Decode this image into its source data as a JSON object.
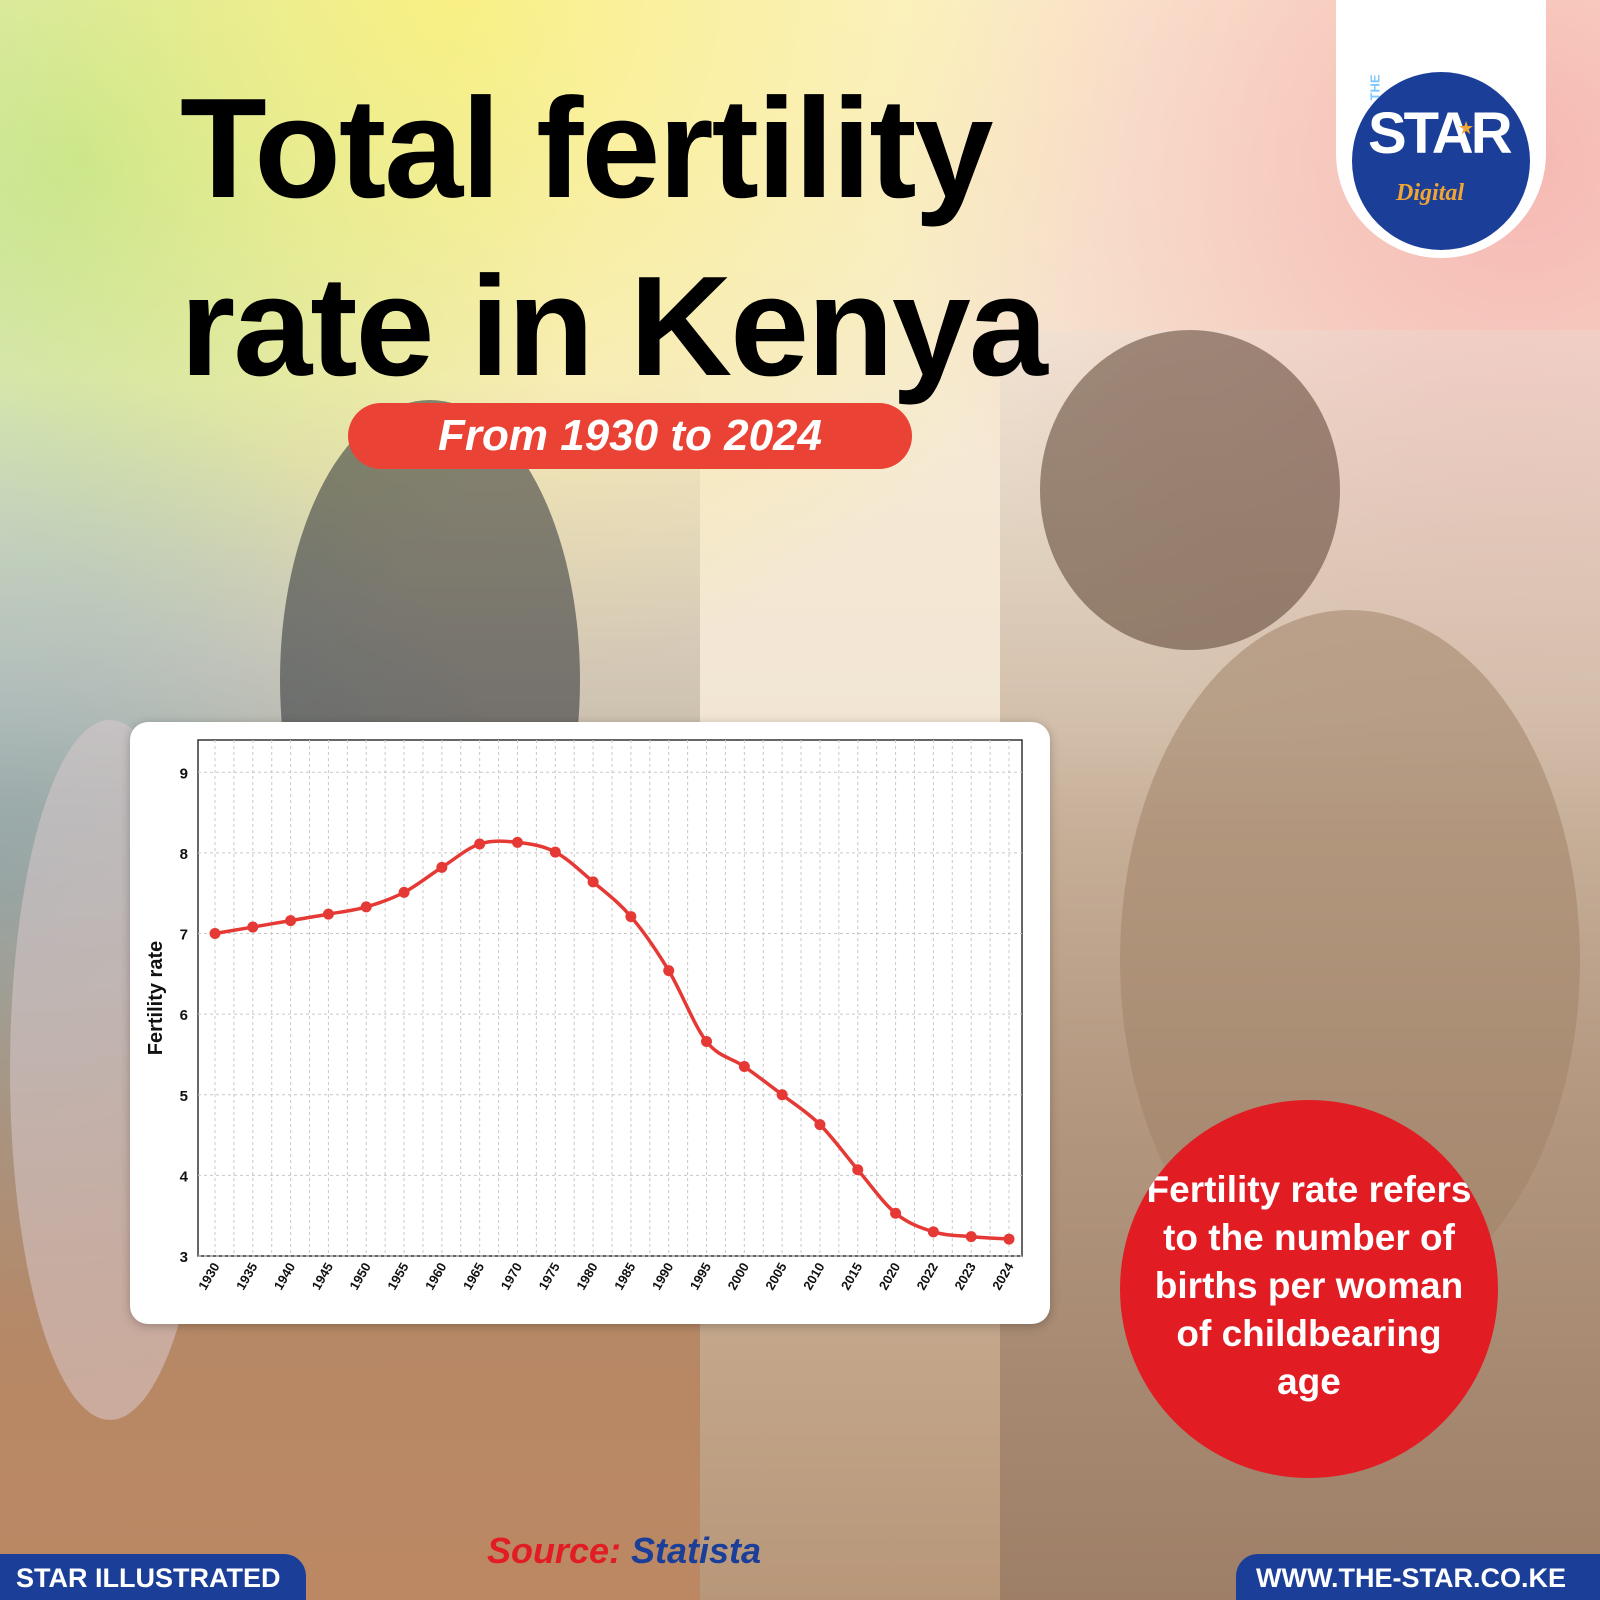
{
  "title": "Total fertility rate in Kenya",
  "subtitle": "From 1930 to 2024",
  "logo": {
    "small": "THE",
    "main": "STAR",
    "sub": "Digital"
  },
  "info_text": "Fertility rate refers to the number of births per woman of childbearing age",
  "source": {
    "label": "Source:",
    "value": "Statista"
  },
  "footer": {
    "left": "STAR ILLUSTRATED",
    "right": "WWW.THE-STAR.CO.KE"
  },
  "colors": {
    "accent_red": "#e21c23",
    "pill_red": "#ea4335",
    "brand_blue": "#1b3f98",
    "line": "#e53935"
  },
  "chart_data": {
    "type": "line",
    "ylabel": "Fertility rate",
    "xlabel": "",
    "ylim": [
      3,
      9.4
    ],
    "yticks": [
      3,
      4,
      5,
      6,
      7,
      8,
      9
    ],
    "grid": true,
    "categories": [
      "1930",
      "1935",
      "1940",
      "1945",
      "1950",
      "1955",
      "1960",
      "1965",
      "1970",
      "1975",
      "1980",
      "1985",
      "1990",
      "1995",
      "2000",
      "2005",
      "2010",
      "2015",
      "2020",
      "2022",
      "2023",
      "2024"
    ],
    "series": [
      {
        "values": [
          7.0,
          7.08,
          7.16,
          7.24,
          7.33,
          7.51,
          7.82,
          8.11,
          8.13,
          8.01,
          7.64,
          7.21,
          6.54,
          5.66,
          5.35,
          5.0,
          4.63,
          4.07,
          3.53,
          3.3,
          3.24,
          3.21
        ]
      }
    ]
  }
}
